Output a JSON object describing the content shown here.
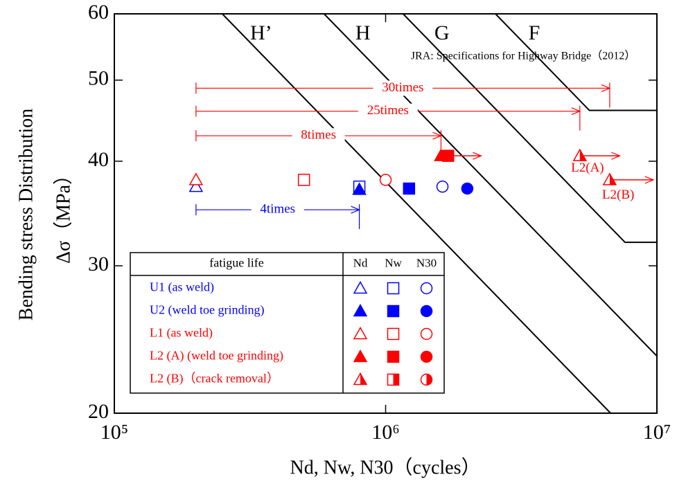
{
  "chart_data": {
    "type": "scatter",
    "xlabel": "Nd, Nw, N30（cycles）",
    "ylabel": [
      "Bending stress Distribution",
      "Δσ（MPa）"
    ],
    "log_x": true,
    "log_y": true,
    "xlim": [
      100000,
      10000000
    ],
    "xticks": [
      {
        "value": 100000,
        "label": "10⁵"
      },
      {
        "value": 1000000,
        "label": "10⁶"
      },
      {
        "value": 10000000,
        "label": "10⁷"
      }
    ],
    "ylim": [
      20,
      60
    ],
    "yticks": [
      20,
      30,
      40,
      50,
      60
    ],
    "note": "JRA: Specifications for Highway Bridge（2012）",
    "design_curves": [
      {
        "name": "H’",
        "color": "#000000",
        "x": [
          250000,
          6750000
        ],
        "y": [
          60,
          20
        ]
      },
      {
        "name": "H",
        "color": "#000000",
        "x": [
          593000,
          10000000
        ],
        "y": [
          60,
          23.4
        ]
      },
      {
        "name": "G",
        "color": "#000000",
        "x": [
          1160000,
          7630000,
          10000000
        ],
        "y": [
          60,
          32,
          32
        ]
      },
      {
        "name": "F",
        "color": "#000000",
        "x": [
          2540000,
          5640000,
          10000000
        ],
        "y": [
          60,
          46,
          46
        ]
      }
    ],
    "legend_headers": [
      "fatigue life",
      "Nd",
      "Nw",
      "N30"
    ],
    "series": [
      {
        "name": "U1 (as weld)",
        "color": "#0000ff",
        "fill": "open",
        "nd": [
          [
            200000,
            37.3
          ]
        ],
        "nw": [
          [
            800000,
            37.3
          ]
        ],
        "n30": [
          [
            1620000,
            37.3
          ]
        ]
      },
      {
        "name": "U2 (weld toe grinding)",
        "color": "#0000ff",
        "fill": "filled",
        "nd": [
          [
            800000,
            37.0
          ]
        ],
        "nw": [
          [
            1220000,
            37.1
          ]
        ],
        "n30": [
          [
            2000000,
            37.1
          ]
        ]
      },
      {
        "name": "L1 (as weld)",
        "color": "#ff0000",
        "fill": "open",
        "nd": [
          [
            200000,
            38.0
          ]
        ],
        "nw": [
          [
            500000,
            38.0
          ]
        ],
        "n30": [
          [
            1000000,
            38.0
          ]
        ]
      },
      {
        "name": "L2 (A) (weld toe grinding)",
        "color": "#ff0000",
        "fill": "filled",
        "nd": [
          [
            1600000,
            40.6
          ]
        ],
        "nw": [
          [
            1700000,
            40.6
          ]
        ],
        "n30": []
      },
      {
        "name": "L2 (B)（crack removal）",
        "color": "#ff0000",
        "fill": "half",
        "nd": [
          [
            5200000,
            40.6
          ],
          [
            6700000,
            38.0
          ]
        ],
        "nw": [],
        "n30": []
      }
    ],
    "ratio_arrows": [
      {
        "label": "30times",
        "color": "#ff0000",
        "x": [
          200000,
          6700000
        ],
        "y": 48.9
      },
      {
        "label": "25times",
        "color": "#ff0000",
        "x": [
          200000,
          5200000
        ],
        "y": 45.9
      },
      {
        "label": "8times",
        "color": "#ff0000",
        "x": [
          200000,
          1600000
        ],
        "y": 42.9
      },
      {
        "label": "4times",
        "color": "#0000ff",
        "x": [
          200000,
          800000
        ],
        "y": 35.0
      }
    ],
    "runouts": [
      {
        "color": "#ff0000",
        "x": [
          1750000,
          2250000
        ],
        "y": 40.6
      },
      {
        "color": "#ff0000",
        "x": [
          5350000,
          7300000
        ],
        "y": 40.6
      },
      {
        "color": "#ff0000",
        "x": [
          6900000,
          9700000
        ],
        "y": 38.0
      }
    ],
    "point_labels": [
      {
        "text": "L2(A)",
        "color": "#ff0000",
        "x": 5550000,
        "y": 39.2
      },
      {
        "text": "L2(B)",
        "color": "#ff0000",
        "x": 7200000,
        "y": 36.4
      }
    ]
  }
}
